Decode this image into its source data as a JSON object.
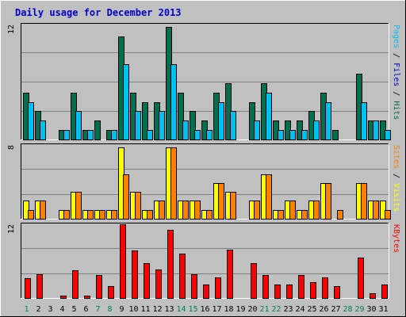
{
  "chart_data": {
    "type": "bar",
    "title": "Daily usage for December 2013",
    "days": [
      "1",
      "2",
      "3",
      "4",
      "5",
      "6",
      "7",
      "8",
      "9",
      "10",
      "11",
      "12",
      "13",
      "14",
      "15",
      "16",
      "17",
      "18",
      "19",
      "20",
      "21",
      "22",
      "23",
      "24",
      "25",
      "26",
      "27",
      "28",
      "29",
      "30",
      "31"
    ],
    "weekend_days": [
      "1",
      "7",
      "8",
      "14",
      "15",
      "21",
      "22",
      "28",
      "29"
    ],
    "colors": {
      "title": "#0000cc",
      "hits": "#006f50",
      "files": "#00c0f0",
      "visits": "#ffff00",
      "sites": "#ff8000",
      "kbytes": "#ff0000",
      "weekend_label": "#00805c",
      "weekday_label": "#000000",
      "plot_bg": "#c0c0c0",
      "grid": "#808080"
    },
    "panels": [
      {
        "id": "hits-files",
        "ymax": 12,
        "ymax_label": "12",
        "side_label": [
          {
            "text": "Pages",
            "color": "#00c0f0"
          },
          {
            "text": " / ",
            "color": "#000000"
          },
          {
            "text": "Files",
            "color": "#0000cc"
          },
          {
            "text": " / ",
            "color": "#000000"
          },
          {
            "text": "Hits",
            "color": "#006f50"
          }
        ],
        "series": [
          {
            "name": "Hits",
            "color": "#006f50",
            "values": [
              5,
              3,
              0,
              1,
              5,
              1,
              2,
              1,
              11,
              5,
              4,
              4,
              12,
              5,
              3,
              2,
              5,
              6,
              0,
              4,
              6,
              2,
              2,
              2,
              3,
              5,
              1,
              0,
              7,
              2,
              2
            ]
          },
          {
            "name": "Files",
            "color": "#00c0f0",
            "values": [
              4,
              2,
              0,
              1,
              3,
              1,
              0,
              1,
              8,
              3,
              1,
              3,
              8,
              2,
              1,
              1,
              4,
              3,
              0,
              2,
              5,
              1,
              1,
              1,
              2,
              4,
              0,
              0,
              4,
              2,
              1
            ]
          }
        ]
      },
      {
        "id": "visits-sites",
        "ymax": 8,
        "ymax_label": "8",
        "side_label": [
          {
            "text": "Sites",
            "color": "#ff8000"
          },
          {
            "text": " / ",
            "color": "#000000"
          },
          {
            "text": "Visits",
            "color": "#ffff00"
          }
        ],
        "series": [
          {
            "name": "Visits",
            "color": "#ffff00",
            "values": [
              2,
              2,
              0,
              1,
              3,
              1,
              1,
              1,
              8,
              3,
              1,
              2,
              8,
              2,
              2,
              1,
              4,
              3,
              0,
              2,
              5,
              1,
              2,
              1,
              2,
              4,
              0,
              0,
              4,
              2,
              2
            ]
          },
          {
            "name": "Sites",
            "color": "#ff8000",
            "values": [
              1,
              2,
              0,
              1,
              3,
              1,
              1,
              1,
              5,
              3,
              1,
              2,
              8,
              2,
              2,
              1,
              4,
              3,
              0,
              2,
              5,
              1,
              2,
              1,
              2,
              4,
              1,
              0,
              4,
              2,
              1
            ]
          }
        ]
      },
      {
        "id": "kbytes",
        "ymax": 12,
        "ymax_label": "12",
        "side_label": [
          {
            "text": "KBytes",
            "color": "#ff0000"
          }
        ],
        "series": [
          {
            "name": "KBytes",
            "color": "#ff0000",
            "values": [
              3.3,
              4.0,
              0,
              0.4,
              4.6,
              0.4,
              3.8,
              2.0,
              12.4,
              8.0,
              5.8,
              4.8,
              11.4,
              7.5,
              4.0,
              2.3,
              3.5,
              8.1,
              0,
              5.8,
              3.8,
              2.3,
              2.3,
              3.8,
              2.7,
              3.4,
              2.0,
              0,
              6.8,
              0.8,
              2.3
            ]
          }
        ]
      }
    ]
  }
}
